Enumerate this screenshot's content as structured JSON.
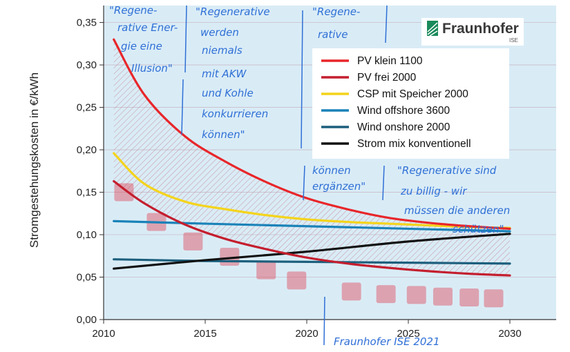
{
  "chart_data": {
    "type": "line",
    "ylabel": "Stromgestehungskosten in €/kWh",
    "xlabel": "",
    "xlim": [
      2010,
      2030
    ],
    "ylim": [
      0,
      0.37
    ],
    "x_ticks": [
      "2010",
      "2015",
      "2020",
      "2025",
      "2030"
    ],
    "y_ticks": [
      "0,00",
      "0,05",
      "0,10",
      "0,15",
      "0,20",
      "0,25",
      "0,30",
      "0,35"
    ],
    "grid": true,
    "legend_position": "top-right",
    "series": [
      {
        "name": "PV klein 1100",
        "color": "#e8262a",
        "x": [
          2010.5,
          2012,
          2014,
          2016,
          2018,
          2020,
          2022,
          2024,
          2026,
          2028,
          2030
        ],
        "y": [
          0.33,
          0.265,
          0.216,
          0.186,
          0.162,
          0.143,
          0.13,
          0.12,
          0.114,
          0.11,
          0.107
        ]
      },
      {
        "name": "PV frei 2000",
        "color": "#c41e2e",
        "x": [
          2010.5,
          2012,
          2014,
          2016,
          2018,
          2020,
          2022,
          2024,
          2026,
          2028,
          2030
        ],
        "y": [
          0.163,
          0.137,
          0.112,
          0.095,
          0.083,
          0.073,
          0.066,
          0.061,
          0.057,
          0.054,
          0.052
        ]
      },
      {
        "name": "CSP mit Speicher 2000",
        "color": "#f4d41c",
        "x": [
          2010.5,
          2012,
          2014,
          2016,
          2018,
          2020,
          2022,
          2024,
          2026,
          2028,
          2030
        ],
        "y": [
          0.196,
          0.16,
          0.139,
          0.13,
          0.123,
          0.118,
          0.115,
          0.113,
          0.111,
          0.109,
          0.108
        ]
      },
      {
        "name": "Wind offshore 3600",
        "color": "#1a82b8",
        "x": [
          2010.5,
          2015,
          2020,
          2025,
          2030
        ],
        "y": [
          0.116,
          0.113,
          0.11,
          0.107,
          0.104
        ]
      },
      {
        "name": "Wind onshore 2000",
        "color": "#1c5f7d",
        "x": [
          2010.5,
          2015,
          2020,
          2025,
          2030
        ],
        "y": [
          0.071,
          0.069,
          0.068,
          0.067,
          0.066
        ]
      },
      {
        "name": "Strom mix konventionell",
        "color": "#111111",
        "x": [
          2010.5,
          2015,
          2020,
          2025,
          2030
        ],
        "y": [
          0.06,
          0.07,
          0.08,
          0.092,
          0.101
        ]
      }
    ],
    "band_between": [
      "PV klein 1100",
      "PV frei 2000"
    ],
    "overlay_dashes": {
      "color": "#e04a5a",
      "x": [
        2011,
        2012.6,
        2014.4,
        2016.2,
        2018,
        2019.5,
        2022.2,
        2023.9,
        2025.4,
        2026.7,
        2028,
        2029.2
      ],
      "y": [
        0.15,
        0.115,
        0.092,
        0.074,
        0.058,
        0.046,
        0.033,
        0.03,
        0.029,
        0.027,
        0.026,
        0.025
      ]
    }
  },
  "annotations": [
    {
      "lines": [
        "\"Regene-",
        "rative Ener-",
        "gie eine",
        "Illusion\""
      ]
    },
    {
      "lines": [
        "\"Regenerative",
        "werden",
        "niemals",
        "mit AKW",
        "und Kohle",
        "konkurrieren",
        "können\""
      ]
    },
    {
      "lines": [
        "\"Regene-",
        "rative"
      ]
    },
    {
      "lines": [
        "können",
        "ergänzen\""
      ]
    },
    {
      "lines": [
        "\"Regenerative sind",
        "zu billig - wir",
        "müssen die anderen",
        "schützen\""
      ]
    },
    {
      "lines": [
        "Fraunhofer ISE 2021"
      ]
    }
  ],
  "logo": {
    "name": "Fraunhofer",
    "sub": "ISE",
    "color": "#1a8a5a"
  }
}
